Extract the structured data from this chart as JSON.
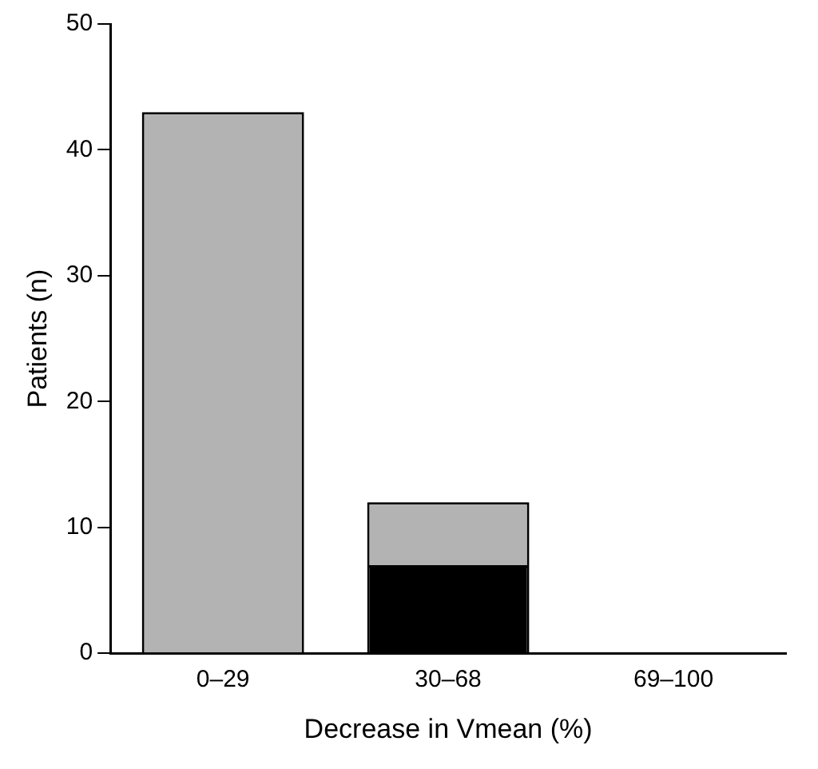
{
  "chart_data": {
    "type": "bar",
    "stacked": true,
    "xlabel": "Decrease in Vmean (%)",
    "ylabel": "Patients (n)",
    "categories": [
      "0–29",
      "30–68",
      "69–100"
    ],
    "series": [
      {
        "color": "#000000",
        "values": [
          0,
          7,
          0
        ]
      },
      {
        "color": "#b3b3b3",
        "values": [
          43,
          5,
          0
        ]
      }
    ],
    "ylim": [
      0,
      50
    ],
    "yticks": [
      0,
      10,
      20,
      30,
      40,
      50
    ],
    "grid": false,
    "legend": false
  }
}
